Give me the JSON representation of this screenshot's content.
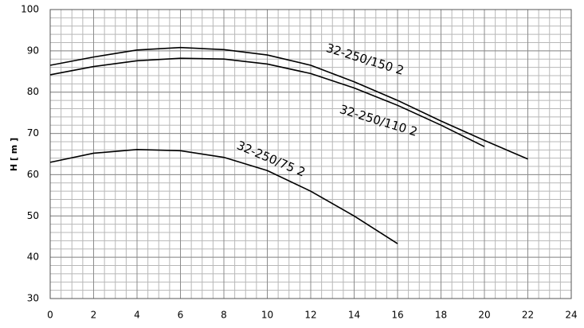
{
  "chart_data": {
    "type": "line",
    "y_label": "H [ m ]",
    "x": [
      0,
      2,
      4,
      6,
      8,
      10,
      12,
      14,
      16,
      18,
      20,
      22
    ],
    "series": [
      {
        "name": "32-250/150 2",
        "color": "#000000",
        "values": [
          86.5,
          88.5,
          90.2,
          90.8,
          90.3,
          89,
          86.5,
          82.5,
          78,
          73,
          68.3,
          63.8
        ]
      },
      {
        "name": "32-250/110 2",
        "color": "#000000",
        "values": [
          84.2,
          86.2,
          87.6,
          88.2,
          88,
          86.8,
          84.5,
          81,
          76.8,
          72,
          66.8,
          null
        ]
      },
      {
        "name": "32-250/75 2",
        "color": "#000000",
        "values": [
          63,
          65.2,
          66.1,
          65.8,
          64.2,
          61,
          56,
          50,
          43.3,
          null,
          null,
          null
        ]
      }
    ],
    "xlim": [
      0,
      24
    ],
    "xticks": [
      0,
      2,
      4,
      6,
      8,
      10,
      12,
      14,
      16,
      18,
      20,
      22,
      24
    ],
    "ylim": [
      30,
      100
    ],
    "yticks": [
      30,
      40,
      50,
      60,
      70,
      80,
      90,
      100
    ],
    "grid": true,
    "x_minor_step": 0.5,
    "y_minor_step": 2
  }
}
